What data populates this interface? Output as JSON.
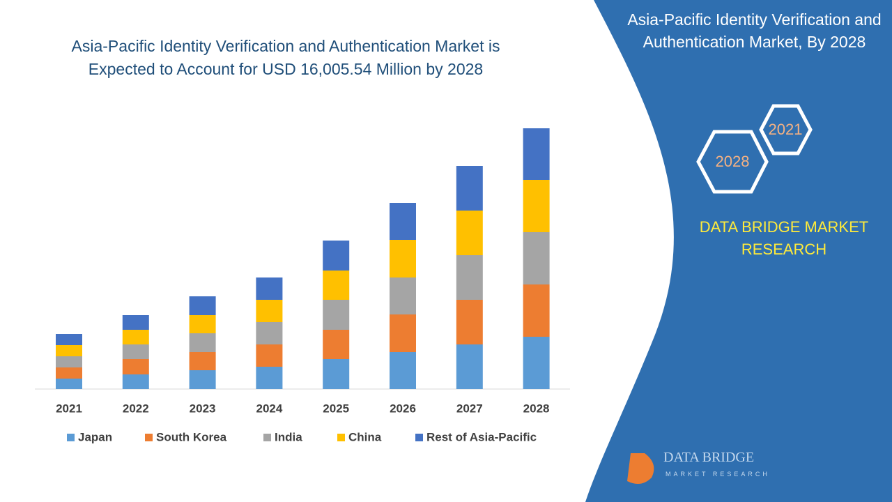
{
  "chart_data": {
    "type": "bar",
    "stacked": true,
    "title": "Asia-Pacific Identity Verification and Authentication Market is Expected to Account for USD 16,005.54 Million by 2028",
    "categories": [
      "2021",
      "2022",
      "2023",
      "2024",
      "2025",
      "2026",
      "2027",
      "2028"
    ],
    "series": [
      {
        "name": "Japan",
        "color": "#5b9bd5",
        "values": [
          15,
          21,
          27,
          32,
          43,
          53,
          64,
          75
        ]
      },
      {
        "name": "South Korea",
        "color": "#ed7d31",
        "values": [
          16,
          22,
          26,
          32,
          42,
          54,
          64,
          75
        ]
      },
      {
        "name": "India",
        "color": "#a5a5a5",
        "values": [
          16,
          21,
          27,
          32,
          43,
          53,
          64,
          75
        ]
      },
      {
        "name": "China",
        "color": "#ffc000",
        "values": [
          16,
          21,
          26,
          32,
          42,
          54,
          64,
          75
        ]
      },
      {
        "name": "Rest of Asia-Pacific",
        "color": "#4472c4",
        "values": [
          16,
          21,
          27,
          32,
          43,
          53,
          64,
          74
        ]
      }
    ]
  },
  "side_panel": {
    "title": "Asia-Pacific Identity Verification and Authentication Market, By 2028",
    "hex_years": [
      "2021",
      "2028"
    ],
    "brand": "DATA BRIDGE MARKET RESEARCH"
  },
  "logo": {
    "name": "DATA BRIDGE",
    "tagline": "MARKET RESEARCH"
  }
}
